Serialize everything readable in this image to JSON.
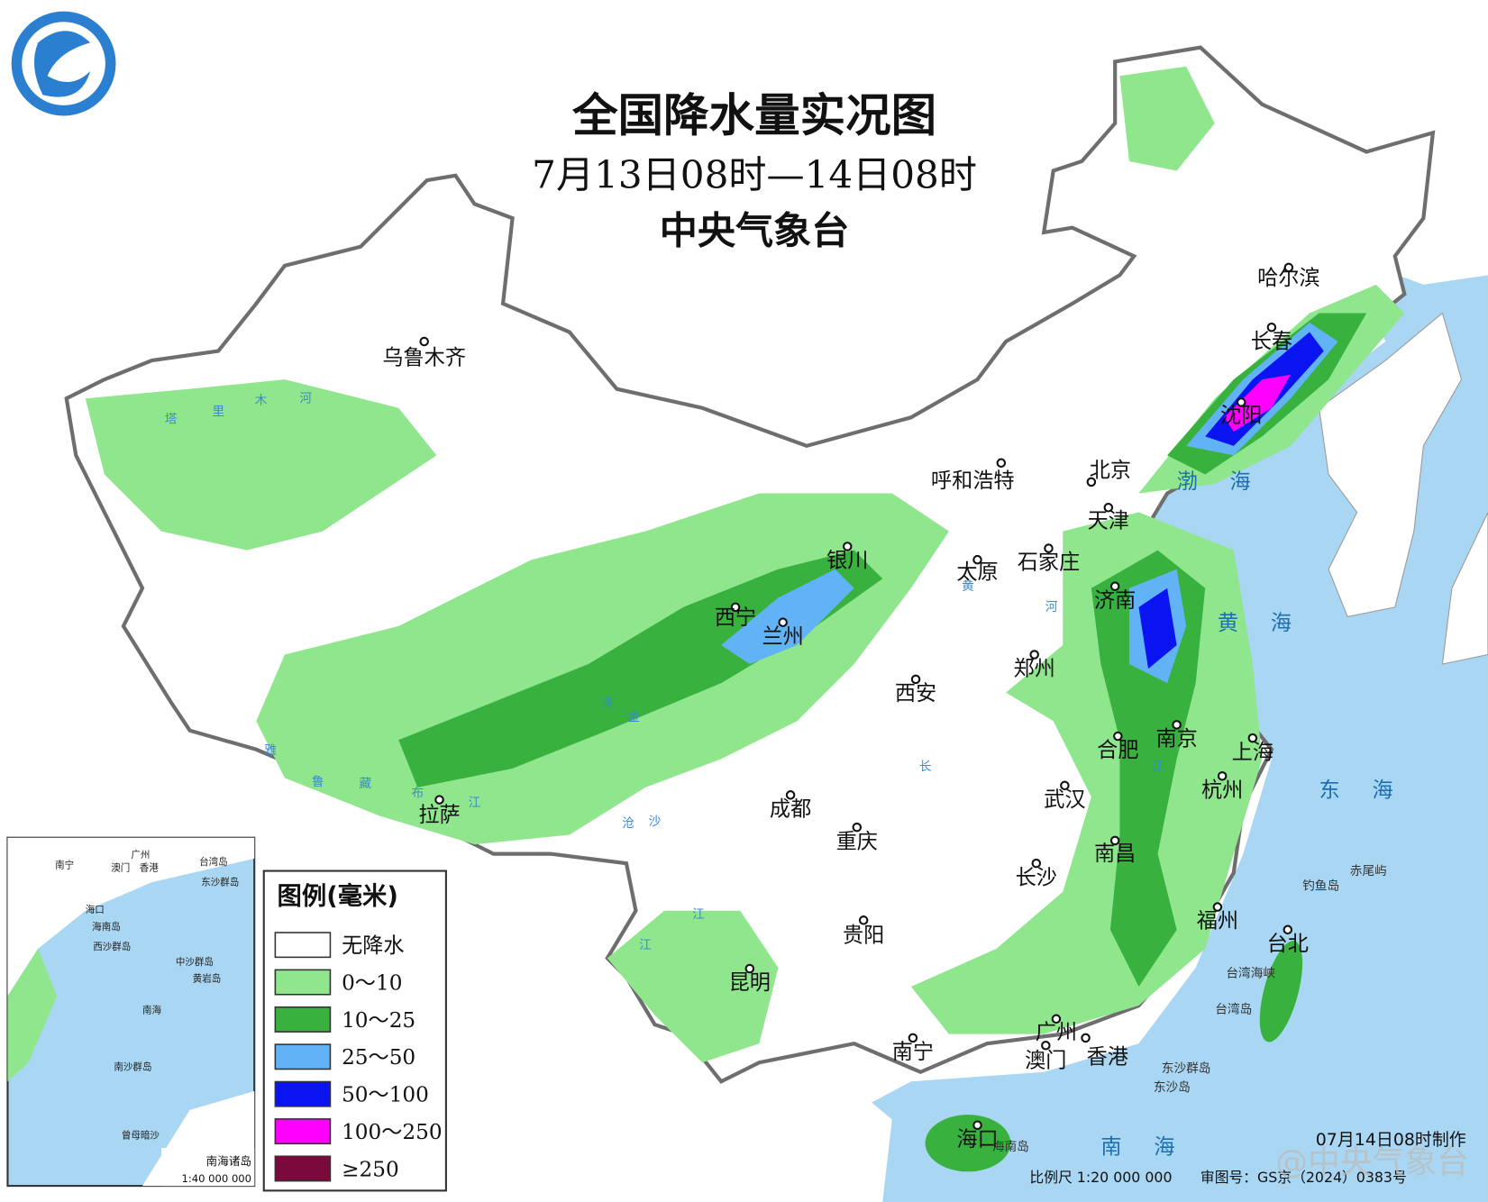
{
  "header": {
    "title": "全国降水量实况图",
    "subtitle": "7月13日08时—14日08时",
    "agency": "中央气象台"
  },
  "legend": {
    "title": "图例(毫米)",
    "items": [
      {
        "label": "无降水",
        "color": "#ffffff"
      },
      {
        "label": "0～10",
        "color": "#8fe68c"
      },
      {
        "label": "10～25",
        "color": "#38b13f"
      },
      {
        "label": "25～50",
        "color": "#62b3f5"
      },
      {
        "label": "50～100",
        "color": "#0a14f0"
      },
      {
        "label": "100～250",
        "color": "#ff00ff"
      },
      {
        "label": "≥250",
        "color": "#7a0a3c"
      }
    ]
  },
  "cities": [
    "乌鲁木齐",
    "哈尔滨",
    "长春",
    "沈阳",
    "呼和浩特",
    "北京",
    "天津",
    "石家庄",
    "太原",
    "银川",
    "西宁",
    "兰州",
    "济南",
    "郑州",
    "西安",
    "合肥",
    "南京",
    "上海",
    "杭州",
    "武汉",
    "成都",
    "拉萨",
    "重庆",
    "南昌",
    "长沙",
    "贵阳",
    "福州",
    "台北",
    "昆明",
    "南宁",
    "广州",
    "澳门",
    "香港",
    "海口"
  ],
  "seas": [
    "渤海",
    "黄海",
    "东海",
    "南海"
  ],
  "rivers": [
    "塔",
    "里",
    "木",
    "河",
    "黄",
    "河",
    "长",
    "江",
    "雅",
    "鲁",
    "藏",
    "布",
    "江",
    "金",
    "沙",
    "江",
    "澜",
    "沧",
    "江"
  ],
  "islands": [
    "台湾岛",
    "钓鱼岛",
    "赤尾屿",
    "东沙群岛",
    "东沙岛",
    "海南岛",
    "台湾海峡"
  ],
  "inset": {
    "title": "南海诸岛",
    "scale": "1:40 000 000",
    "labels": [
      "南宁",
      "广州",
      "澳门",
      "香港",
      "台湾岛",
      "东沙群岛",
      "海口",
      "海南岛",
      "西沙群岛",
      "中沙群岛",
      "黄岩岛",
      "南海",
      "南沙群岛",
      "曾母暗沙"
    ]
  },
  "footer": {
    "made": "07月14日08时制作",
    "scale": "比例尺 1:20 000 000",
    "approval": "审图号：GS京（2024）0383号"
  },
  "watermark": "@中央气象台"
}
